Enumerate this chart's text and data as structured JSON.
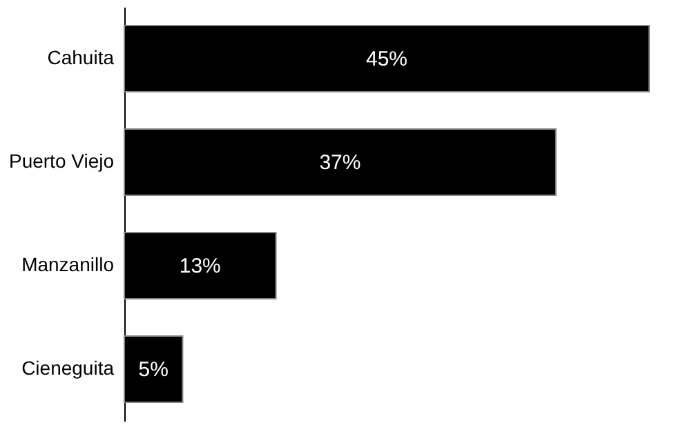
{
  "chart_data": {
    "type": "bar",
    "orientation": "horizontal",
    "categories": [
      "Cahuita",
      "Puerto Viejo",
      "Manzanillo",
      "Cieneguita"
    ],
    "values": [
      45,
      37,
      13,
      5
    ],
    "value_labels": [
      "45%",
      "37%",
      "13%",
      "5%"
    ],
    "color": "#000000"
  }
}
